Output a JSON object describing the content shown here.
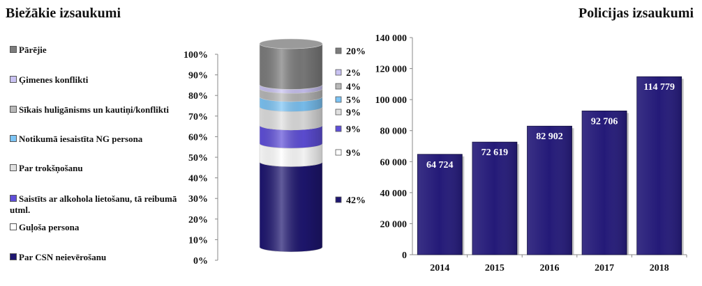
{
  "left_title": "Biežākie izsaukumi",
  "right_title": "Policijas izsaukumi",
  "chart_data": [
    {
      "type": "bar",
      "stacked": true,
      "title": "Biežākie izsaukumi",
      "ylim": [
        0,
        100
      ],
      "yticks": [
        "0%",
        "10%",
        "20%",
        "30%",
        "40%",
        "50%",
        "60%",
        "70%",
        "80%",
        "90%",
        "100%"
      ],
      "legend_position": "left",
      "series": [
        {
          "name": "Par CSN neievērošanu",
          "value": 42,
          "label": "42%",
          "color": "#1e1670"
        },
        {
          "name": "Guļoša persona",
          "value": 9,
          "label": "9%",
          "color": "#ffffff"
        },
        {
          "name": "Saistīts ar alkohola lietošanu, tā reibumā utml.",
          "value": 9,
          "label": "9%",
          "color": "#5f4fd9"
        },
        {
          "name": "Par trokšņošanu",
          "value": 9,
          "label": "9%",
          "color": "#e0e0e0"
        },
        {
          "name": "Notikumā iesaistīta NG persona",
          "value": 5,
          "label": "5%",
          "color": "#7cc4f5"
        },
        {
          "name": "Sīkais huligānisms un kautiņi/konflikti",
          "value": 4,
          "label": "4%",
          "color": "#b8b8b8"
        },
        {
          "name": "Ģimenes konflikti",
          "value": 2,
          "label": "2%",
          "color": "#c9c2f2"
        },
        {
          "name": "Pārējie",
          "value": 20,
          "label": "20%",
          "color": "#7c7c7c"
        }
      ]
    },
    {
      "type": "bar",
      "title": "Policijas izsaukumi",
      "categories": [
        "2014",
        "2015",
        "2016",
        "2017",
        "2018"
      ],
      "values": [
        64724,
        72619,
        82902,
        92706,
        114779
      ],
      "value_labels": [
        "64 724",
        "72 619",
        "82 902",
        "92 706",
        "114 779"
      ],
      "ylim": [
        0,
        140000
      ],
      "yticks": [
        "0",
        "20 000",
        "40 000",
        "60 000",
        "80 000",
        "100 000",
        "120 000",
        "140 000"
      ],
      "bar_color": "#241a78"
    }
  ]
}
